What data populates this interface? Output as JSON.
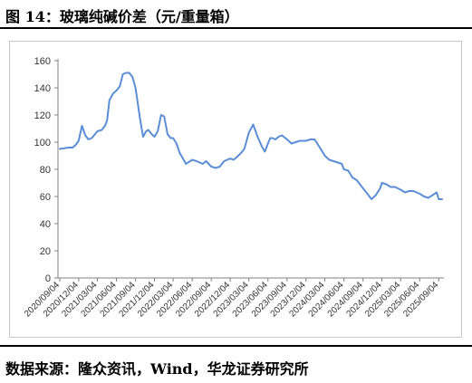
{
  "figure": {
    "title": "图 14：玻璃纯碱价差（元/重量箱）",
    "source": "数据来源：隆众资讯，Wind，华龙证券研究所"
  },
  "chart_data": {
    "type": "line",
    "title": "",
    "xlabel": "",
    "ylabel": "",
    "ylim": [
      0,
      160
    ],
    "yticks": [
      0,
      20,
      40,
      60,
      80,
      100,
      120,
      140,
      160
    ],
    "grid": false,
    "legend": "none",
    "color": "#5b8ed6",
    "x_tick_labels": [
      "2020/09/04",
      "2020/12/04",
      "2021/03/04",
      "2021/06/04",
      "2021/09/04",
      "2021/12/04",
      "2022/03/04",
      "2022/06/04",
      "2022/09/04",
      "2022/12/04",
      "2023/03/04",
      "2023/06/04",
      "2023/09/04",
      "2023/12/04",
      "2024/03/04",
      "2024/06/04",
      "2024/09/04",
      "2024/12/04",
      "2025/03/04",
      "2025/06/04",
      "2025/09/04"
    ],
    "series": [
      {
        "x": [
          "2020/09/04",
          "2020/10/15",
          "2020/11/05",
          "2020/11/20",
          "2020/12/04",
          "2020/12/20",
          "2021/01/05",
          "2021/01/20",
          "2021/02/05",
          "2021/03/04",
          "2021/03/25",
          "2021/04/10",
          "2021/04/20",
          "2021/05/01",
          "2021/05/20",
          "2021/06/04",
          "2021/06/20",
          "2021/07/05",
          "2021/07/20",
          "2021/08/05",
          "2021/08/20",
          "2021/09/04",
          "2021/09/25",
          "2021/10/10",
          "2021/10/25",
          "2021/11/05",
          "2021/11/20",
          "2021/12/04",
          "2021/12/20",
          "2022/01/05",
          "2022/01/20",
          "2022/02/05",
          "2022/02/20",
          "2022/03/04",
          "2022/03/20",
          "2022/04/05",
          "2022/04/20",
          "2022/05/05",
          "2022/06/04",
          "2022/06/25",
          "2022/07/10",
          "2022/07/25",
          "2022/08/10",
          "2022/09/04",
          "2022/09/25",
          "2022/10/15",
          "2022/11/05",
          "2022/12/04",
          "2022/12/20",
          "2023/01/05",
          "2023/01/25",
          "2023/02/10",
          "2023/03/04",
          "2023/03/25",
          "2023/04/15",
          "2023/05/05",
          "2023/05/20",
          "2023/06/04",
          "2023/06/15",
          "2023/06/25",
          "2023/07/10",
          "2023/07/25",
          "2023/08/10",
          "2023/09/04",
          "2023/09/25",
          "2023/10/15",
          "2023/11/05",
          "2023/12/04",
          "2023/12/25",
          "2024/01/15",
          "2024/02/05",
          "2024/03/04",
          "2024/03/25",
          "2024/04/15",
          "2024/05/05",
          "2024/05/25",
          "2024/06/04",
          "2024/06/25",
          "2024/07/15",
          "2024/08/05",
          "2024/08/25",
          "2024/09/04",
          "2024/09/25",
          "2024/10/15",
          "2024/11/05",
          "2024/11/25",
          "2024/12/04",
          "2024/12/25",
          "2025/01/15",
          "2025/02/05",
          "2025/03/04",
          "2025/03/25",
          "2025/04/15",
          "2025/05/05",
          "2025/06/04",
          "2025/06/25",
          "2025/07/15",
          "2025/08/05",
          "2025/08/25",
          "2025/09/04",
          "2025/09/20"
        ],
        "values": [
          95,
          96,
          96,
          98,
          101,
          112,
          105,
          102,
          103,
          108,
          109,
          112,
          116,
          131,
          136,
          138,
          141,
          150,
          151,
          151,
          148,
          140,
          118,
          104,
          108,
          109,
          106,
          104,
          108,
          120,
          119,
          106,
          103,
          103,
          99,
          92,
          88,
          84,
          87,
          86,
          85,
          84,
          86,
          82,
          81,
          82,
          86,
          88,
          87,
          89,
          92,
          95,
          107,
          113,
          104,
          97,
          93,
          99,
          103,
          103,
          102,
          104,
          105,
          102,
          99,
          100,
          101,
          101,
          102,
          102,
          97,
          90,
          87,
          86,
          85,
          84,
          80,
          79,
          74,
          72,
          68,
          66,
          62,
          58,
          61,
          66,
          70,
          69,
          67,
          67,
          65,
          63,
          64,
          64,
          62,
          60,
          59,
          61,
          63,
          58,
          58
        ]
      }
    ]
  }
}
